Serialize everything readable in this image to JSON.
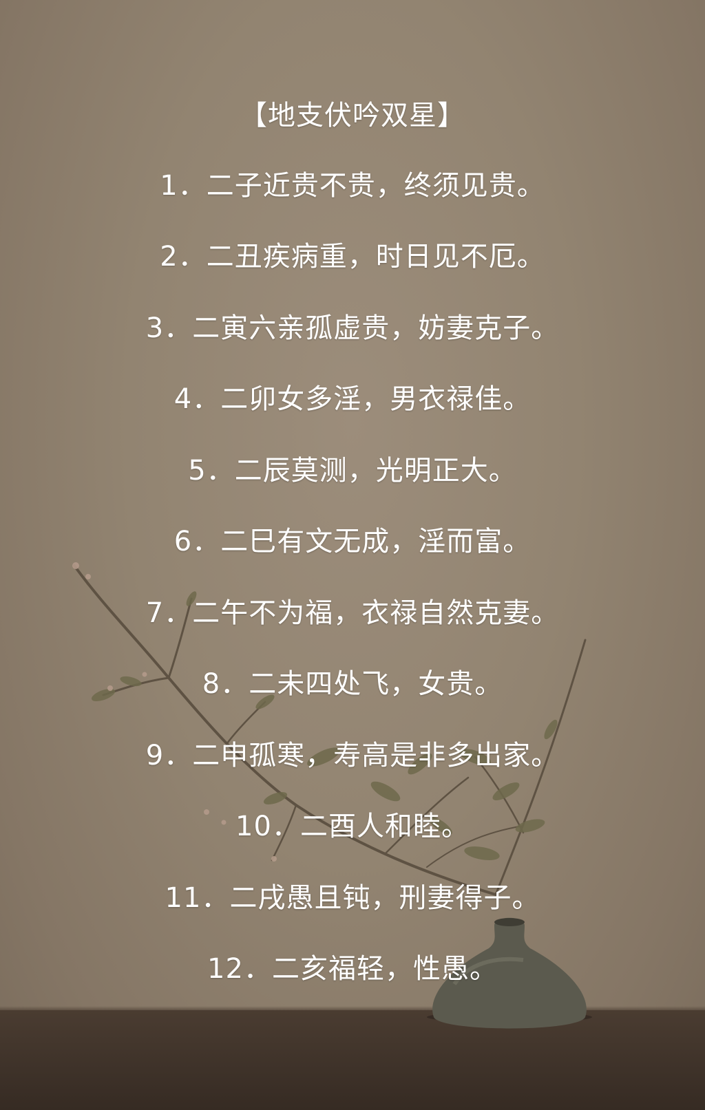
{
  "title": "【地支伏吟双星】",
  "lines": [
    "1．二子近贵不贵，终须见贵。",
    "2．二丑疾病重，时日见不厄。",
    "3．二寅六亲孤虚贵，妨妻克子。",
    "4．二卯女多淫，男衣禄佳。",
    "5．二辰莫测，光明正大。",
    "6．二巳有文无成，淫而富。",
    "7．二午不为福，衣禄自然克妻。",
    "8．二未四处飞，女贵。",
    "9．二申孤寒，寿高是非多出家。",
    "10．二酉人和睦。",
    "11．二戌愚且钝，刑妻得子。",
    "12．二亥福轻，性愚。"
  ],
  "colors": {
    "background": "#8f8170",
    "text": "#ffffff",
    "table": "#3e3229",
    "vase": "#5b5a4e"
  },
  "decor": {
    "elements": [
      "branch-illustration",
      "vase-illustration",
      "table-surface"
    ]
  }
}
